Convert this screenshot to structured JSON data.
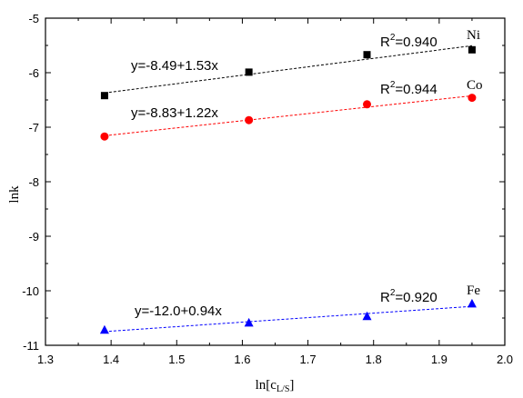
{
  "chart_data": {
    "type": "scatter",
    "xlabel": "ln[c",
    "xlabel_sub": "L/S",
    "xlabel_close": "]",
    "ylabel": "lnk",
    "xlim": [
      1.3,
      2.0
    ],
    "ylim": [
      -11,
      -5
    ],
    "xticks": [
      1.3,
      1.4,
      1.5,
      1.6,
      1.7,
      1.8,
      1.9,
      2.0
    ],
    "xtick_labels": [
      "1.3",
      "1.4",
      "1.5",
      "1.6",
      "1.7",
      "1.8",
      "1.9",
      "2.0"
    ],
    "yticks": [
      -11,
      -10,
      -9,
      -8,
      -7,
      -6,
      -5
    ],
    "ytick_labels": [
      "-11",
      "-10",
      "-9",
      "-8",
      "-7",
      "-6",
      "-5"
    ],
    "grid": false,
    "series": [
      {
        "name": "Ni",
        "marker": "square",
        "color": "#000000",
        "x": [
          1.39,
          1.61,
          1.79,
          1.95
        ],
        "y": [
          -6.42,
          -5.99,
          -5.67,
          -5.58
        ],
        "fit": {
          "intercept": -8.49,
          "slope": 1.53
        },
        "equation": "y=-8.49+1.53x",
        "r2_prefix": "R",
        "r2_sup": "2",
        "r2_value": "=0.940"
      },
      {
        "name": "Co",
        "marker": "circle",
        "color": "#ff0000",
        "x": [
          1.39,
          1.61,
          1.79,
          1.95
        ],
        "y": [
          -7.17,
          -6.87,
          -6.58,
          -6.46
        ],
        "fit": {
          "intercept": -8.83,
          "slope": 1.22
        },
        "equation": "y=-8.83+1.22x",
        "r2_prefix": "R",
        "r2_sup": "2",
        "r2_value": "=0.944"
      },
      {
        "name": "Fe",
        "marker": "triangle",
        "color": "#0000ff",
        "x": [
          1.39,
          1.61,
          1.79,
          1.95
        ],
        "y": [
          -10.72,
          -10.59,
          -10.47,
          -10.24
        ],
        "fit": {
          "intercept": -12.0,
          "slope": 0.94
        },
        "equation": "y=-12.0+0.94x",
        "r2_prefix": "R",
        "r2_sup": "2",
        "r2_value": "=0.920"
      }
    ]
  }
}
